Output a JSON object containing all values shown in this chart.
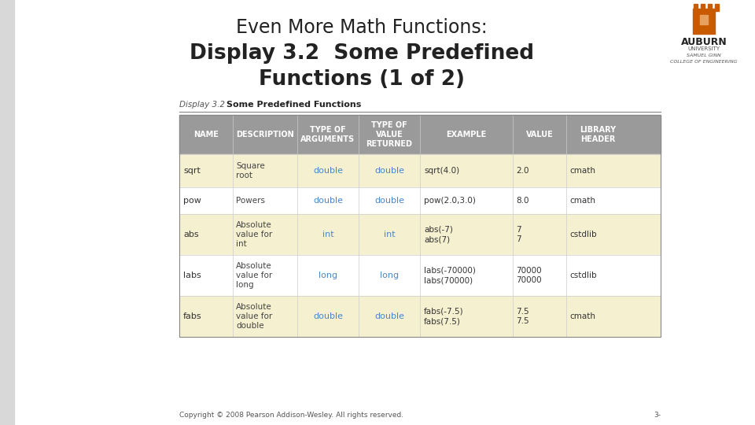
{
  "title_line1": "Even More Math Functions:",
  "title_line2": "Display 3.2  Some Predefined",
  "title_line3": "Functions (1 of 2)",
  "display_label": "Display 3.2",
  "display_title": "Some Predefined Functions",
  "slide_bg": "#ffffff",
  "header_text_color": "#ffffff",
  "type_color": "#4a86c8",
  "normal_color": "#333333",
  "col_headers": [
    "NAME",
    "DESCRIPTION",
    "TYPE OF\nARGUMENTS",
    "TYPE OF\nVALUE\nRETURNED",
    "EXAMPLE",
    "VALUE",
    "LIBRARY\nHEADER"
  ],
  "rows": [
    {
      "name": "sqrt",
      "desc": "Square\nroot",
      "type_args": "double",
      "type_ret": "double",
      "example": "sqrt(4.0)",
      "value": "2.0",
      "library": "cmath",
      "bg": "#f5f0d0"
    },
    {
      "name": "pow",
      "desc": "Powers",
      "type_args": "double",
      "type_ret": "double",
      "example": "pow(2.0,3.0)",
      "value": "8.0",
      "library": "cmath",
      "bg": "#ffffff"
    },
    {
      "name": "abs",
      "desc": "Absolute\nvalue for\nint",
      "type_args": "int",
      "type_ret": "int",
      "example": "abs(-7)\nabs(7)",
      "value": "7\n7",
      "library": "cstdlib",
      "bg": "#f5f0d0"
    },
    {
      "name": "labs",
      "desc": "Absolute\nvalue for\nlong",
      "type_args": "long",
      "type_ret": "long",
      "example": "labs(-70000)\nlabs(70000)",
      "value": "70000\n70000",
      "library": "cstdlib",
      "bg": "#ffffff"
    },
    {
      "name": "fabs",
      "desc": "Absolute\nvalue for\ndouble",
      "type_args": "double",
      "type_ret": "double",
      "example": "fabs(-7.5)\nfabs(7.5)",
      "value": "7.5\n7.5",
      "library": "cmath",
      "bg": "#f5f0d0"
    }
  ],
  "copyright": "Copyright © 2008 Pearson Addison-Wesley. All rights reserved.",
  "page_num": "3-",
  "auburn_text1": "AUBURN",
  "auburn_text2": "UNIVERSITY",
  "auburn_text3": "SAMUEL GINN",
  "auburn_text4": "COLLEGE OF ENGINEERING"
}
